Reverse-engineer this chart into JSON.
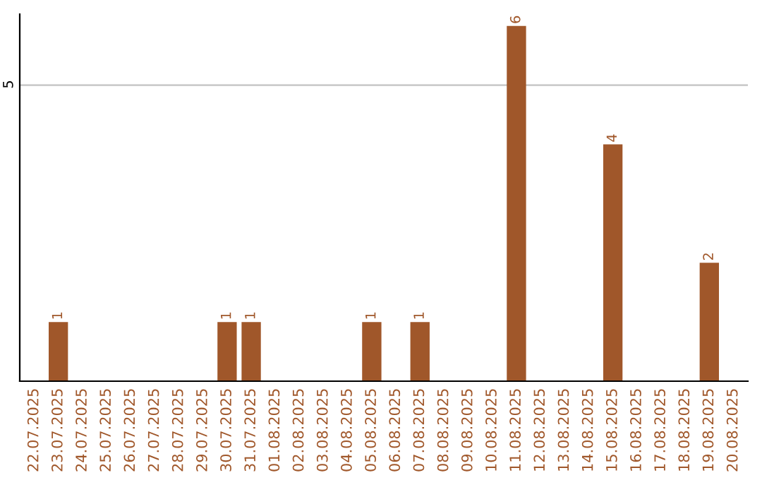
{
  "chart_data": {
    "type": "bar",
    "categories": [
      "22.07.2025",
      "23.07.2025",
      "24.07.2025",
      "25.07.2025",
      "26.07.2025",
      "27.07.2025",
      "28.07.2025",
      "29.07.2025",
      "30.07.2025",
      "31.07.2025",
      "01.08.2025",
      "02.08.2025",
      "03.08.2025",
      "04.08.2025",
      "05.08.2025",
      "06.08.2025",
      "07.08.2025",
      "08.08.2025",
      "09.08.2025",
      "10.08.2025",
      "11.08.2025",
      "12.08.2025",
      "13.08.2025",
      "14.08.2025",
      "15.08.2025",
      "16.08.2025",
      "17.08.2025",
      "18.08.2025",
      "19.08.2025",
      "20.08.2025"
    ],
    "values": [
      0,
      1,
      0,
      0,
      0,
      0,
      0,
      0,
      1,
      1,
      0,
      0,
      0,
      0,
      1,
      0,
      1,
      0,
      0,
      0,
      6,
      0,
      0,
      0,
      4,
      0,
      0,
      0,
      2,
      0
    ],
    "value_labels": [
      null,
      "1",
      null,
      null,
      null,
      null,
      null,
      null,
      "1",
      "1",
      null,
      null,
      null,
      null,
      "1",
      null,
      "1",
      null,
      null,
      null,
      "6",
      null,
      null,
      null,
      "4",
      null,
      null,
      null,
      "2",
      null
    ],
    "color": "#a0572a",
    "ylim": [
      0,
      6.2
    ],
    "yticks": [
      5
    ],
    "grid": "y"
  }
}
